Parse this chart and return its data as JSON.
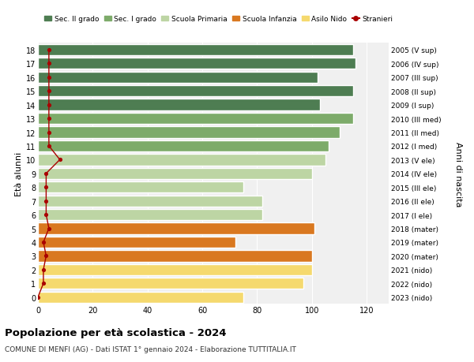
{
  "ages": [
    0,
    1,
    2,
    3,
    4,
    5,
    6,
    7,
    8,
    9,
    10,
    11,
    12,
    13,
    14,
    15,
    16,
    17,
    18
  ],
  "years": [
    "2023 (nido)",
    "2022 (nido)",
    "2021 (nido)",
    "2020 (mater)",
    "2019 (mater)",
    "2018 (mater)",
    "2017 (I ele)",
    "2016 (II ele)",
    "2015 (III ele)",
    "2014 (IV ele)",
    "2013 (V ele)",
    "2012 (I med)",
    "2011 (II med)",
    "2010 (III med)",
    "2009 (I sup)",
    "2008 (II sup)",
    "2007 (III sup)",
    "2006 (IV sup)",
    "2005 (V sup)"
  ],
  "bar_values": [
    75,
    97,
    100,
    100,
    72,
    101,
    82,
    82,
    75,
    100,
    105,
    106,
    110,
    115,
    103,
    115,
    102,
    116,
    115
  ],
  "stranieri": [
    0,
    2,
    2,
    3,
    2,
    4,
    3,
    3,
    3,
    3,
    8,
    4,
    4,
    4,
    4,
    4,
    4,
    4,
    4
  ],
  "school_types": [
    "nido",
    "nido",
    "nido",
    "mater",
    "mater",
    "mater",
    "ele",
    "ele",
    "ele",
    "ele",
    "ele",
    "med",
    "med",
    "med",
    "sup",
    "sup",
    "sup",
    "sup",
    "sup"
  ],
  "colors": {
    "sup": "#4e7d52",
    "med": "#7dab6a",
    "ele": "#bdd5a4",
    "mater": "#d97820",
    "nido": "#f5d96e"
  },
  "stranieri_color": "#aa0000",
  "bg_color": "#f0f0f0",
  "title": "Popolazione per età scolastica - 2024",
  "subtitle": "COMUNE DI MENFI (AG) - Dati ISTAT 1° gennaio 2024 - Elaborazione TUTTITALIA.IT",
  "ylabel_left": "Età alunni",
  "ylabel_right": "Anni di nascita",
  "xlim": [
    0,
    128
  ],
  "xticks": [
    0,
    20,
    40,
    60,
    80,
    100,
    120
  ],
  "legend_labels": [
    "Sec. II grado",
    "Sec. I grado",
    "Scuola Primaria",
    "Scuola Infanzia",
    "Asilo Nido",
    "Stranieri"
  ]
}
